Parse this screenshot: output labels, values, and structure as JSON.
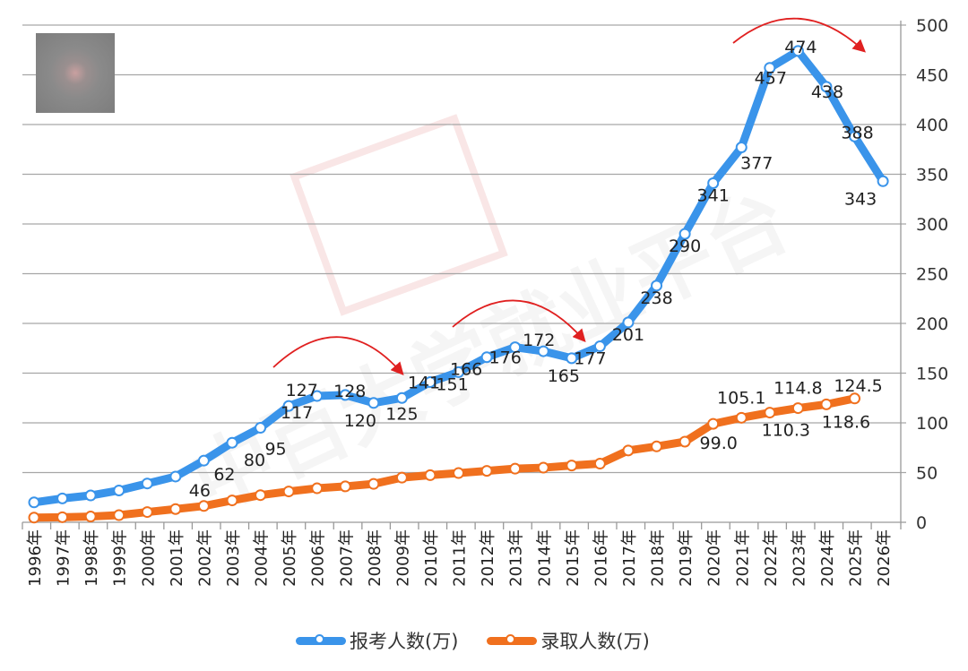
{
  "chart_data": {
    "type": "line",
    "title": "",
    "xlabel": "",
    "ylabel": "",
    "ylim": [
      0,
      500
    ],
    "yticks": [
      "0",
      "50",
      "100",
      "150",
      "200",
      "250",
      "300",
      "350",
      "400",
      "450",
      "500"
    ],
    "y_axis_position": "right",
    "grid": true,
    "legend_placement": "bottom",
    "categories": [
      "1996年",
      "1997年",
      "1998年",
      "1999年",
      "2000年",
      "2001年",
      "2002年",
      "2003年",
      "2004年",
      "2005年",
      "2006年",
      "2007年",
      "2008年",
      "2009年",
      "2010年",
      "2011年",
      "2012年",
      "2013年",
      "2014年",
      "2015年",
      "2016年",
      "2017年",
      "2018年",
      "2019年",
      "2020年",
      "2021年",
      "2022年",
      "2023年",
      "2024年",
      "2025年",
      "2026年"
    ],
    "series": [
      {
        "name": "报考人数(万)",
        "color": "#3a94ea",
        "values": [
          20,
          24,
          27,
          32,
          39,
          46,
          62,
          80,
          95,
          117,
          127,
          128,
          120,
          125,
          141,
          151,
          166,
          176,
          172,
          165,
          177,
          201,
          238,
          290,
          341,
          377,
          457,
          474,
          438,
          388,
          343
        ],
        "labels": [
          null,
          null,
          null,
          null,
          null,
          "46",
          "62",
          "80",
          "95",
          "117",
          "127",
          "128",
          "120",
          "125",
          "141",
          "151",
          "166",
          "176",
          "172",
          "165",
          "177",
          "201",
          "238",
          "290",
          "341",
          "377",
          "457",
          "474",
          "438",
          "388",
          "343"
        ]
      },
      {
        "name": "录取人数(万)",
        "color": "#f0701e",
        "values": [
          4.7,
          5.1,
          5.8,
          7.2,
          10.3,
          13.3,
          16.4,
          22.0,
          27.3,
          31.0,
          34.2,
          36.1,
          38.6,
          44.9,
          47.4,
          49.5,
          51.7,
          53.9,
          54.9,
          57.1,
          59.0,
          72.2,
          76.3,
          81.1,
          99.0,
          105.1,
          110.3,
          114.8,
          118.6,
          124.5,
          null
        ],
        "labels": [
          null,
          null,
          null,
          null,
          null,
          null,
          null,
          null,
          null,
          null,
          null,
          null,
          null,
          null,
          null,
          null,
          null,
          null,
          null,
          null,
          null,
          null,
          null,
          null,
          "99.0",
          "105.1",
          "110.3",
          "114.8",
          "118.6",
          "124.5",
          null
        ]
      }
    ],
    "annotations": [
      "trend-arrow-2005-2009",
      "trend-arrow-2011-2015",
      "trend-arrow-2022-2025"
    ]
  }
}
